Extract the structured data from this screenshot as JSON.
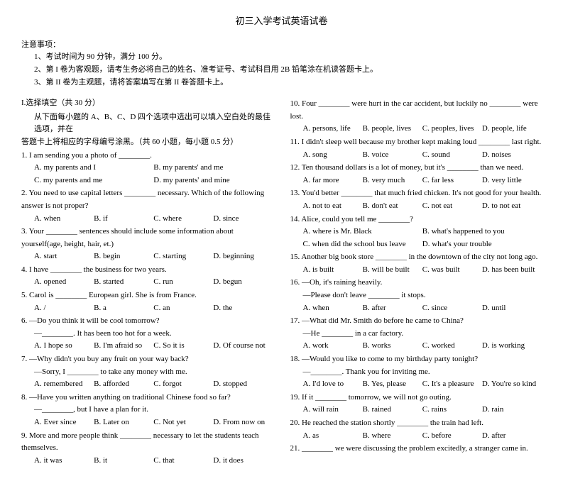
{
  "title": "初三入学考试英语试卷",
  "noticeHead": "注意事项：",
  "notice1": "1、考试时间为 90 分钟，满分 100 分。",
  "notice2": "2、第 I 卷为客观题，请考生务必将自己的姓名、准考证号、考试科目用 2B 铅笔涂在机读答题卡上。",
  "notice3": "3、第 II 卷为主观题，请将答案填写在第 II 卷答题卡上。",
  "sectionI": "I.选择填空（共 30 分）",
  "sectionIdesc1": "从下面每小题的 A、B、C、D 四个选项中选出可以填入空白处的最佳选项，并在",
  "sectionIdesc2": "答题卡上将相应的字母编号涂黑。（共 60 小题，每小题 0.5 分）",
  "q1": {
    "t": "1. I am sending you a photo of ________.",
    "a": "A. my parents and I",
    "b": "B. my parents' and me",
    "c": "C. my parents and me",
    "d": "D. my parents' and mine"
  },
  "q2": {
    "t": "2. You need to use capital letters ________ necessary. Which of the following answer is not proper?",
    "a": "A. when",
    "b": "B. if",
    "c": "C. where",
    "d": "D. since"
  },
  "q3": {
    "t": "3. Your ________ sentences should include some information about yourself(age, height, hair, et.)",
    "a": "A. start",
    "b": "B. begin",
    "c": "C. starting",
    "d": "D. beginning"
  },
  "q4": {
    "t": "4. I have ________ the business for two years.",
    "a": "A. opened",
    "b": "B. started",
    "c": "C. run",
    "d": "D. begun"
  },
  "q5": {
    "t": "5. Carol is ________ European girl. She is from France.",
    "a": "A. /",
    "b": "B. a",
    "c": "C. an",
    "d": "D. the"
  },
  "q6": {
    "t": "6. —Do you think it will be cool tomorrow?",
    "t2": "—________. It has been too hot for a week.",
    "a": "A. I hope so",
    "b": "B. I'm afraid so",
    "c": "C. So it is",
    "d": "D. Of course not"
  },
  "q7": {
    "t": "7. —Why didn't you buy any fruit on your way back?",
    "t2": "—Sorry, I ________ to take any money with me.",
    "a": "A. remembered",
    "b": "B. afforded",
    "c": "C. forgot",
    "d": "D. stopped"
  },
  "q8": {
    "t": "8. —Have you written anything on traditional Chinese food so far?",
    "t2": "—________, but I have a plan for it.",
    "a": "A. Ever since",
    "b": "B. Later on",
    "c": "C. Not yet",
    "d": "D. From now on"
  },
  "q9": {
    "t": "9. More and more people think ________ necessary to let the students teach themselves.",
    "a": "A. it was",
    "b": "B. it",
    "c": "C. that",
    "d": "D. it does"
  },
  "q10": {
    "t": "10. Four ________ were hurt in the car accident, but luckily no ________ were lost.",
    "a": "A. persons, life",
    "b": "B. people, lives",
    "c": "C. peoples, lives",
    "d": "D. people, life"
  },
  "q11": {
    "t": "11. I didn't sleep well because my brother kept making loud ________ last right.",
    "a": "A. song",
    "b": "B. voice",
    "c": "C. sound",
    "d": "D. noises"
  },
  "q12": {
    "t": "12. Ten thousand dollars is a lot of money, but it's ________ than we need.",
    "a": "A. far more",
    "b": "B. very much",
    "c": "C. far less",
    "d": "D. very little"
  },
  "q13": {
    "t": "13. You'd better ________ that much fried chicken. It's not good for your health.",
    "a": "A. not to eat",
    "b": "B. don't eat",
    "c": "C. not eat",
    "d": "D. to not eat"
  },
  "q14": {
    "t": "14. Alice, could you tell me ________?",
    "a": "A. where is Mr. Black",
    "b": "B. what's happened to you",
    "c": "C. when did the school bus leave",
    "d": "D. what's your trouble"
  },
  "q15": {
    "t": "15. Another big book store ________ in the downtown of the city not long ago.",
    "a": "A. is built",
    "b": "B. will be built",
    "c": "C. was built",
    "d": "D. has been built"
  },
  "q16": {
    "t": "16. —Oh, it's raining heavily.",
    "t2": "—Please don't leave ________ it stops.",
    "a": "A. when",
    "b": "B. after",
    "c": "C. since",
    "d": "D. until"
  },
  "q17": {
    "t": "17. —What did Mr. Smith do before he came to China?",
    "t2": "—He ________ in a car factory.",
    "a": "A. work",
    "b": "B. works",
    "c": "C. worked",
    "d": "D. is working"
  },
  "q18": {
    "t": "18. —Would you like to come to my birthday party tonight?",
    "t2": "—________. Thank you for inviting me.",
    "a": "A. I'd love to",
    "b": "B. Yes, please",
    "c": "C. It's a pleasure",
    "d": "D. You're so kind"
  },
  "q19": {
    "t": "19. If it ________ tomorrow, we will not go outing.",
    "a": "A. will rain",
    "b": "B. rained",
    "c": "C. rains",
    "d": "D. rain"
  },
  "q20": {
    "t": "20. He reached the station shortly ________ the train had left.",
    "a": "A. as",
    "b": "B. where",
    "c": "C. before",
    "d": "D. after"
  },
  "q21": {
    "t": "21. ________ we were discussing the problem excitedly, a stranger came in."
  }
}
